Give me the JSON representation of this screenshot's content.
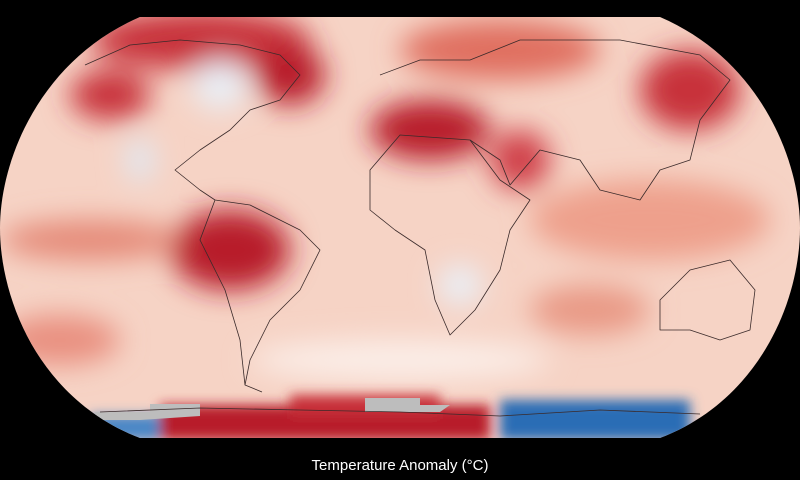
{
  "map": {
    "caption": "Temperature Anomaly (°C)"
  }
}
